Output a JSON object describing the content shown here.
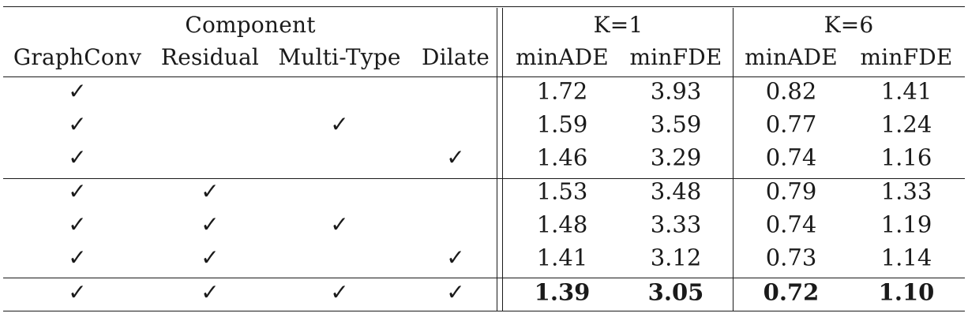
{
  "table": {
    "group_headers": {
      "component": "Component",
      "k1": "K=1",
      "k6": "K=6"
    },
    "column_headers": [
      "GraphConv",
      "Residual",
      "Multi-Type",
      "Dilate",
      "minADE",
      "minFDE",
      "minADE",
      "minFDE"
    ],
    "check_mark": "✓",
    "rows": [
      {
        "graphconv": true,
        "residual": false,
        "multitype": false,
        "dilate": false,
        "k1_minade": "1.72",
        "k1_minfde": "3.93",
        "k6_minade": "0.82",
        "k6_minfde": "1.41",
        "bold": false
      },
      {
        "graphconv": true,
        "residual": false,
        "multitype": true,
        "dilate": false,
        "k1_minade": "1.59",
        "k1_minfde": "3.59",
        "k6_minade": "0.77",
        "k6_minfde": "1.24",
        "bold": false
      },
      {
        "graphconv": true,
        "residual": false,
        "multitype": false,
        "dilate": true,
        "k1_minade": "1.46",
        "k1_minfde": "3.29",
        "k6_minade": "0.74",
        "k6_minfde": "1.16",
        "bold": false
      },
      {
        "graphconv": true,
        "residual": true,
        "multitype": false,
        "dilate": false,
        "k1_minade": "1.53",
        "k1_minfde": "3.48",
        "k6_minade": "0.79",
        "k6_minfde": "1.33",
        "bold": false
      },
      {
        "graphconv": true,
        "residual": true,
        "multitype": true,
        "dilate": false,
        "k1_minade": "1.48",
        "k1_minfde": "3.33",
        "k6_minade": "0.74",
        "k6_minfde": "1.19",
        "bold": false
      },
      {
        "graphconv": true,
        "residual": true,
        "multitype": false,
        "dilate": true,
        "k1_minade": "1.41",
        "k1_minfde": "3.12",
        "k6_minade": "0.73",
        "k6_minfde": "1.14",
        "bold": false
      },
      {
        "graphconv": true,
        "residual": true,
        "multitype": true,
        "dilate": true,
        "k1_minade": "1.39",
        "k1_minfde": "3.05",
        "k6_minade": "0.72",
        "k6_minfde": "1.10",
        "bold": true
      }
    ]
  }
}
